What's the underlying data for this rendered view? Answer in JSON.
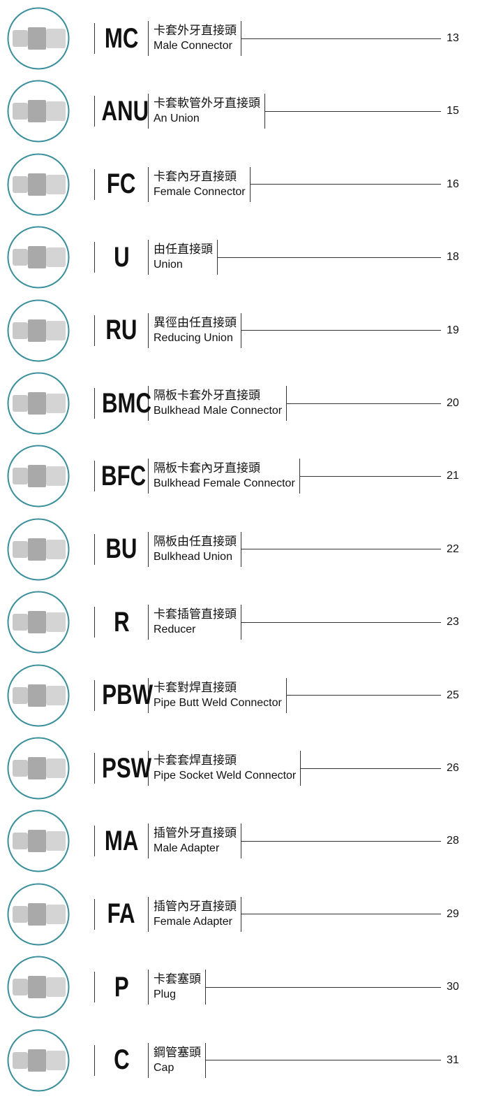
{
  "items": [
    {
      "code": "MC",
      "zh": "卡套外牙直接頭",
      "en": "Male Connector",
      "page": "13"
    },
    {
      "code": "ANU",
      "zh": "卡套軟管外牙直接頭",
      "en": "An Union",
      "page": "15"
    },
    {
      "code": "FC",
      "zh": "卡套內牙直接頭",
      "en": "Female Connector",
      "page": "16"
    },
    {
      "code": "U",
      "zh": "由任直接頭",
      "en": "Union",
      "page": "18"
    },
    {
      "code": "RU",
      "zh": "異徑由任直接頭",
      "en": "Reducing Union",
      "page": "19"
    },
    {
      "code": "BMC",
      "zh": "隔板卡套外牙直接頭",
      "en": "Bulkhead Male Connector",
      "page": "20"
    },
    {
      "code": "BFC",
      "zh": "隔板卡套內牙直接頭",
      "en": "Bulkhead Female Connector",
      "page": "21"
    },
    {
      "code": "BU",
      "zh": "隔板由任直接頭",
      "en": "Bulkhead Union",
      "page": "22"
    },
    {
      "code": "R",
      "zh": "卡套插管直接頭",
      "en": "Reducer",
      "page": "23"
    },
    {
      "code": "PBW",
      "zh": "卡套對焊直接頭",
      "en": "Pipe Butt Weld Connector",
      "page": "25"
    },
    {
      "code": "PSW",
      "zh": "卡套套焊直接頭",
      "en": "Pipe Socket Weld Connector",
      "page": "26"
    },
    {
      "code": "MA",
      "zh": "插管外牙直接頭",
      "en": "Male Adapter",
      "page": "28"
    },
    {
      "code": "FA",
      "zh": "插管內牙直接頭",
      "en": "Female Adapter",
      "page": "29"
    },
    {
      "code": "P",
      "zh": "卡套塞頭",
      "en": "Plug",
      "page": "30"
    },
    {
      "code": "C",
      "zh": "鋼管塞頭",
      "en": "Cap",
      "page": "31"
    }
  ]
}
